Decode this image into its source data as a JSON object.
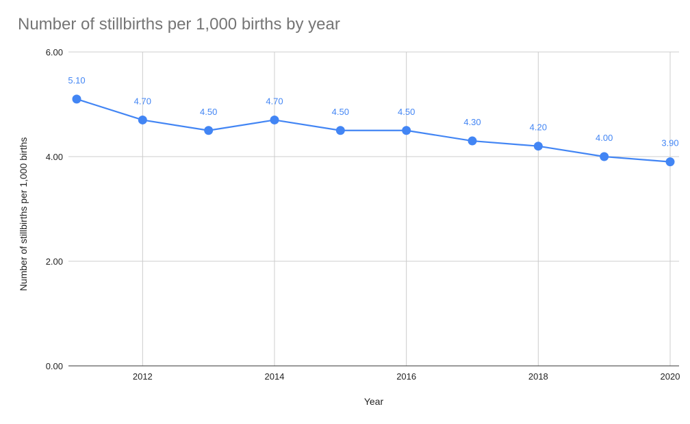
{
  "chart_data": {
    "type": "line",
    "title": "Number of stillbirths per 1,000 births by year",
    "xlabel": "Year",
    "ylabel": "Number of stillbirths per 1,000 births",
    "x": [
      2011,
      2012,
      2013,
      2014,
      2015,
      2016,
      2017,
      2018,
      2019,
      2020
    ],
    "series": [
      {
        "values": [
          5.1,
          4.7,
          4.5,
          4.7,
          4.5,
          4.5,
          4.3,
          4.2,
          4.0,
          3.9
        ],
        "data_labels": [
          "5.10",
          "4.70",
          "4.50",
          "4.70",
          "4.50",
          "4.50",
          "4.30",
          "4.20",
          "4.00",
          "3.90"
        ],
        "color": "#4285f4"
      }
    ],
    "xlim": [
      2011,
      2020
    ],
    "ylim": [
      0,
      6
    ],
    "x_ticks": [
      2012,
      2014,
      2016,
      2018,
      2020
    ],
    "x_tick_labels": [
      "2012",
      "2014",
      "2016",
      "2018",
      "2020"
    ],
    "y_ticks": [
      0,
      2,
      4,
      6
    ],
    "y_tick_labels": [
      "0.00",
      "2.00",
      "4.00",
      "6.00"
    ],
    "x_gridlines": [
      2012,
      2014,
      2016,
      2018,
      2020
    ],
    "grid": true,
    "legend": "none",
    "colors": {
      "line": "#4285f4",
      "title": "#757575",
      "grid": "#cccccc"
    }
  }
}
